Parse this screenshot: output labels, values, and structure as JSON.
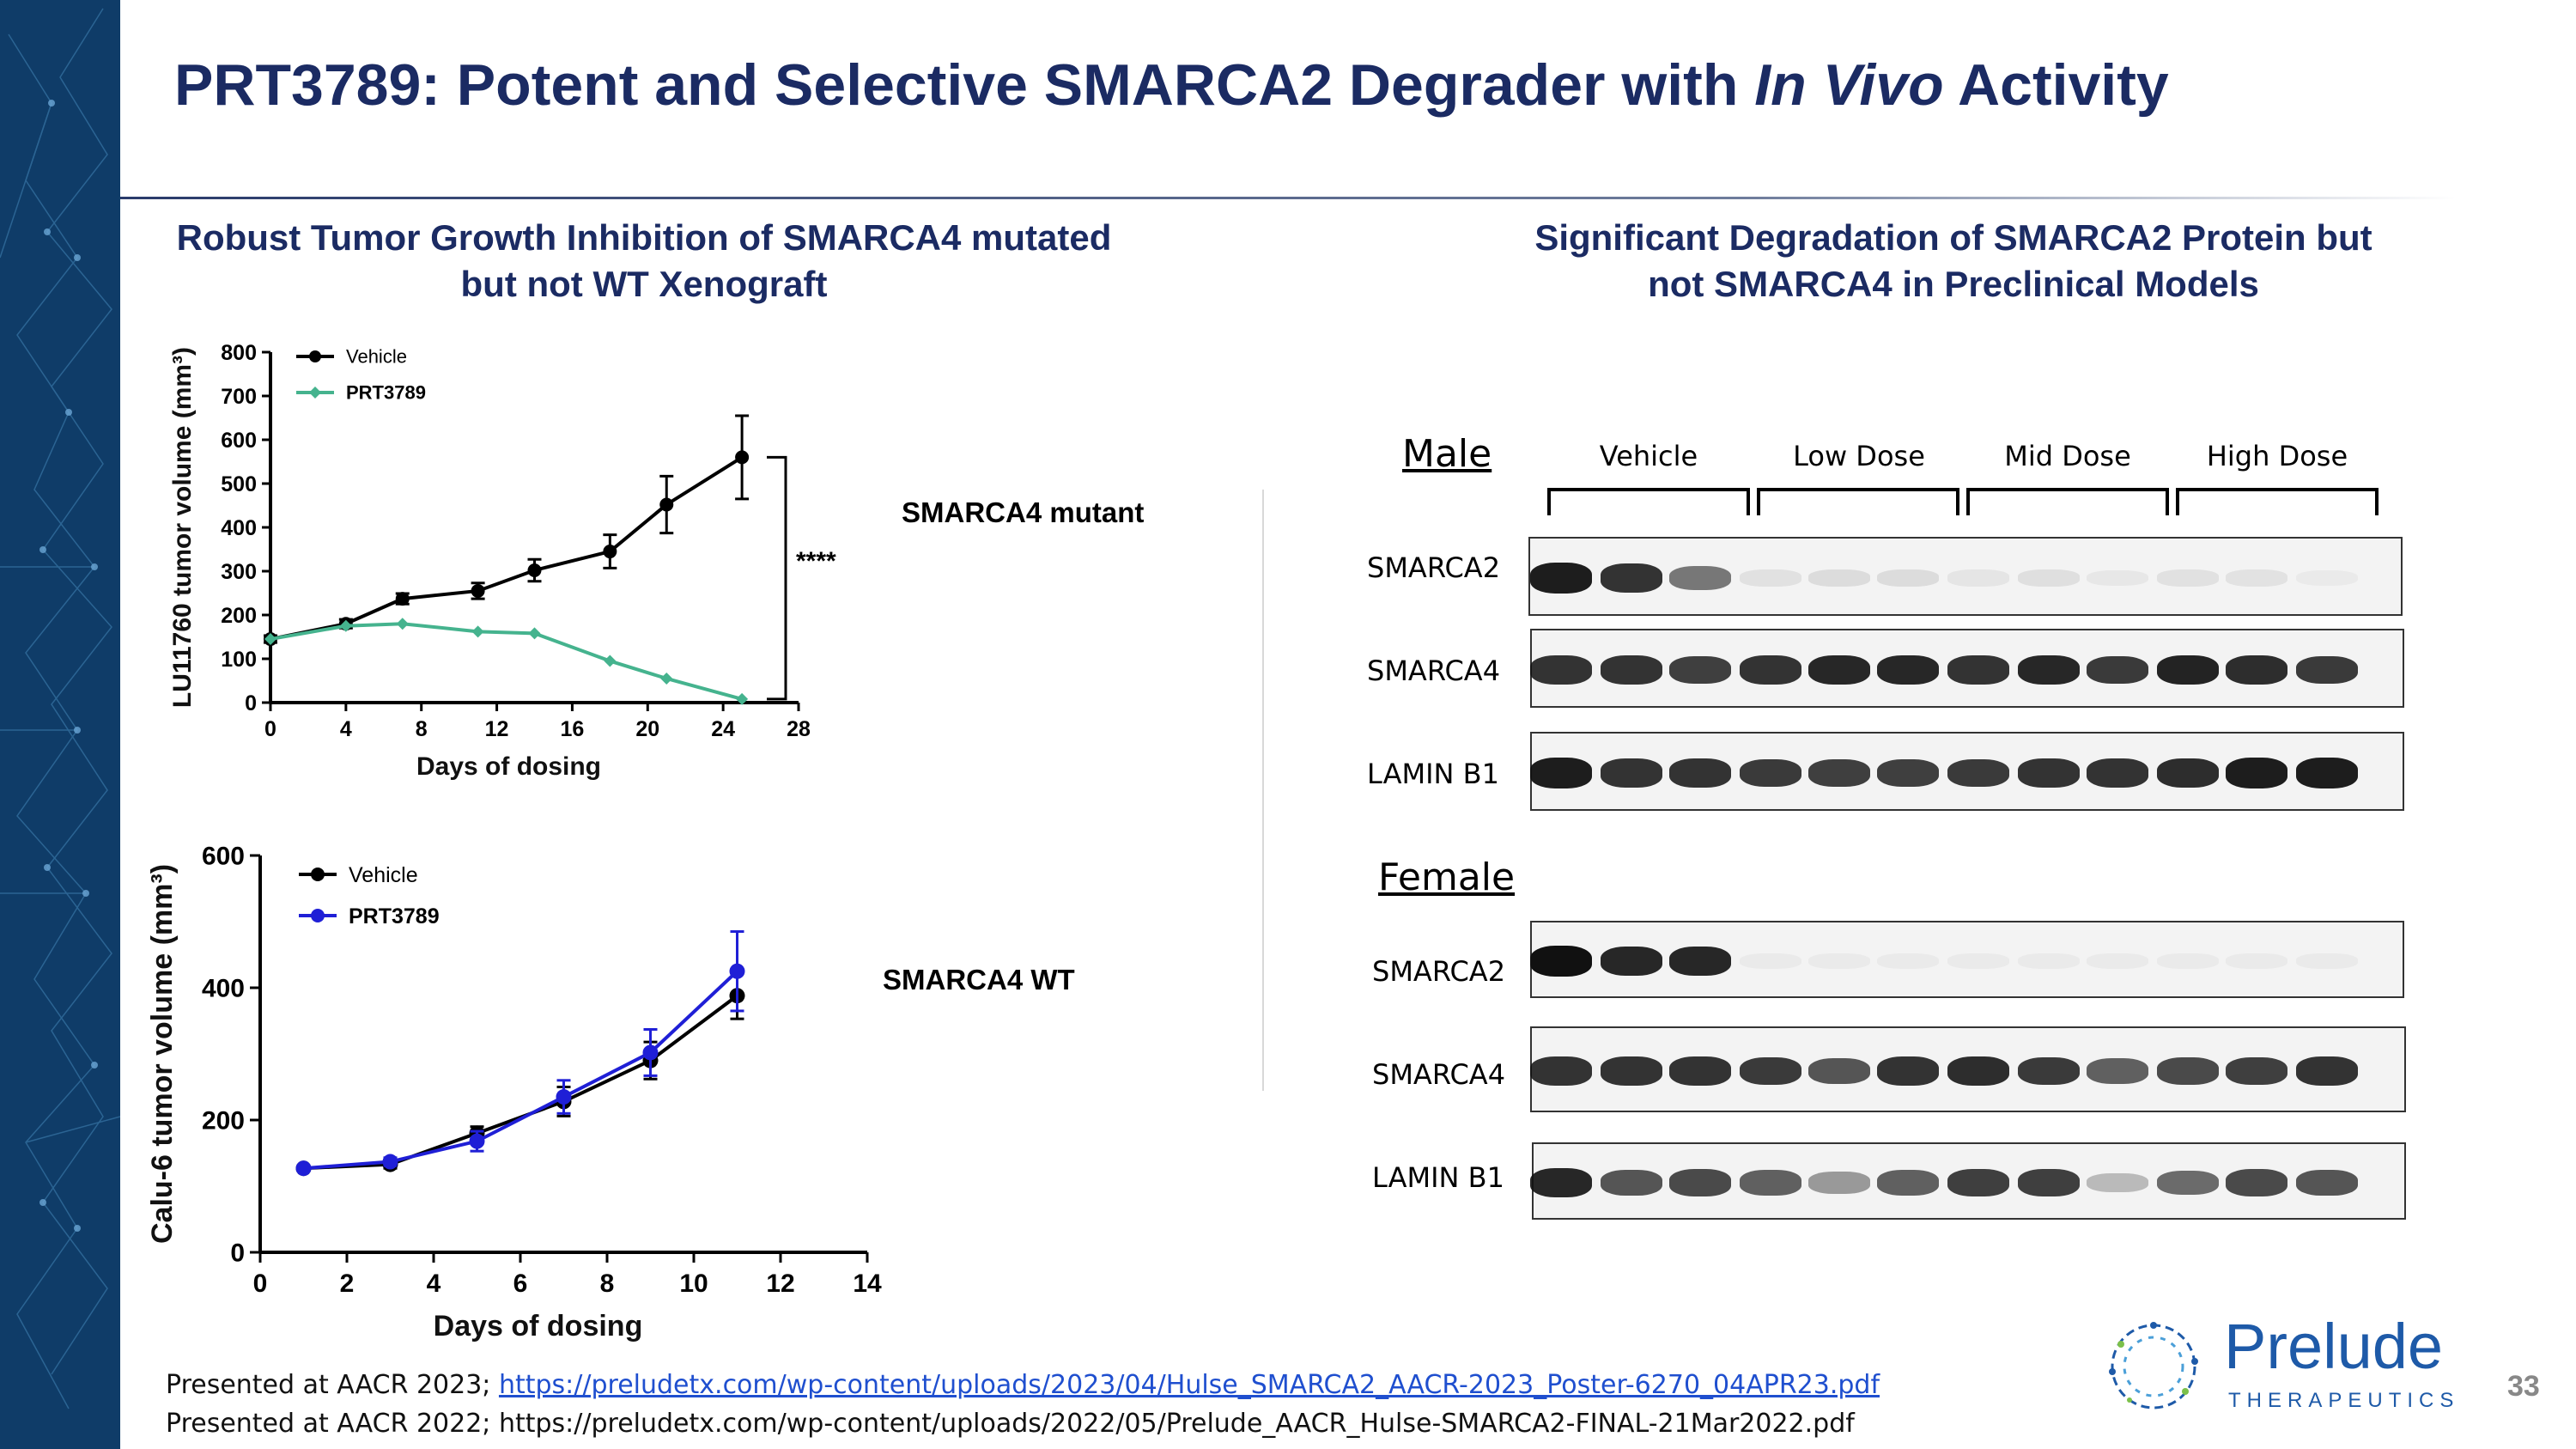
{
  "slide": {
    "title_main": "PRT3789: Potent and Selective SMARCA2 Degrader with ",
    "title_italic": "In Vivo",
    "title_end": " Activity",
    "left_heading_line1": "Robust Tumor Growth Inhibition of SMARCA4 mutated",
    "left_heading_line2": "but not WT Xenograft",
    "right_heading_line1": "Significant Degradation of SMARCA2 Protein but",
    "right_heading_line2": "not SMARCA4 in Preclinical Models",
    "page_number": "33"
  },
  "chart_data": [
    {
      "type": "line",
      "ylabel": "LU11760 tumor volume (mm³)",
      "xlabel": "Days of dosing",
      "group_label": "SMARCA4 mutant",
      "significance": "****",
      "xlim": [
        0,
        28
      ],
      "ylim": [
        0,
        800
      ],
      "xticks": [
        0,
        4,
        8,
        12,
        16,
        20,
        24,
        28
      ],
      "yticks": [
        0,
        100,
        200,
        300,
        400,
        500,
        600,
        700,
        800
      ],
      "legend_position": "top-left",
      "series": [
        {
          "name": "Vehicle",
          "color": "#000000",
          "marker": "circle",
          "x": [
            0,
            4,
            7,
            11,
            14,
            18,
            21,
            25
          ],
          "y": [
            145,
            180,
            237,
            255,
            302,
            345,
            452,
            560
          ],
          "err": [
            8,
            10,
            12,
            18,
            25,
            38,
            65,
            95
          ]
        },
        {
          "name": "PRT3789",
          "color": "#45b38e",
          "marker": "diamond",
          "x": [
            0,
            4,
            7,
            11,
            14,
            18,
            21,
            25
          ],
          "y": [
            145,
            175,
            180,
            162,
            158,
            95,
            55,
            8
          ],
          "err": [
            0,
            0,
            0,
            0,
            0,
            0,
            0,
            0
          ]
        }
      ]
    },
    {
      "type": "line",
      "ylabel": "Calu-6 tumor volume (mm³)",
      "xlabel": "Days of dosing",
      "group_label": "SMARCA4 WT",
      "xlim": [
        0,
        14
      ],
      "ylim": [
        0,
        600
      ],
      "xticks": [
        0,
        2,
        4,
        6,
        8,
        10,
        12,
        14
      ],
      "yticks": [
        0,
        200,
        400,
        600
      ],
      "legend_position": "top-left",
      "series": [
        {
          "name": "Vehicle",
          "color": "#000000",
          "marker": "circle",
          "x": [
            1,
            3,
            5,
            7,
            9,
            11
          ],
          "y": [
            127,
            133,
            180,
            228,
            290,
            388
          ],
          "err": [
            4,
            6,
            10,
            22,
            28,
            35
          ]
        },
        {
          "name": "PRT3789",
          "color": "#1f1fd6",
          "marker": "circle",
          "x": [
            1,
            3,
            5,
            7,
            9,
            11
          ],
          "y": [
            127,
            137,
            168,
            235,
            302,
            425
          ],
          "err": [
            4,
            6,
            15,
            25,
            35,
            60
          ]
        }
      ]
    }
  ],
  "western_blot": {
    "male_label": "Male",
    "female_label": "Female",
    "dose_groups": [
      "Vehicle",
      "Low Dose",
      "Mid Dose",
      "High Dose"
    ],
    "proteins": [
      "SMARCA2",
      "SMARCA4",
      "LAMIN B1"
    ],
    "male_band_intensity": {
      "SMARCA2": [
        0.95,
        0.85,
        0.55,
        0.08,
        0.1,
        0.1,
        0.06,
        0.09,
        0.05,
        0.08,
        0.07,
        0.04
      ],
      "SMARCA4": [
        0.85,
        0.85,
        0.8,
        0.85,
        0.9,
        0.9,
        0.85,
        0.9,
        0.82,
        0.92,
        0.88,
        0.82
      ],
      "LAMIN B1": [
        0.95,
        0.85,
        0.85,
        0.82,
        0.8,
        0.8,
        0.82,
        0.85,
        0.85,
        0.88,
        0.95,
        0.95
      ]
    },
    "female_band_intensity": {
      "SMARCA2": [
        1.0,
        0.9,
        0.9,
        0.03,
        0.02,
        0.03,
        0.02,
        0.02,
        0.02,
        0.02,
        0.02,
        0.02
      ],
      "SMARCA4": [
        0.85,
        0.85,
        0.85,
        0.82,
        0.7,
        0.85,
        0.88,
        0.82,
        0.65,
        0.75,
        0.8,
        0.85
      ],
      "LAMIN B1": [
        0.9,
        0.7,
        0.75,
        0.65,
        0.4,
        0.65,
        0.8,
        0.8,
        0.25,
        0.6,
        0.75,
        0.7
      ]
    }
  },
  "footnotes": {
    "line1_prefix": "Presented at AACR 2023; ",
    "line1_link": "https://preludetx.com/wp-content/uploads/2023/04/Hulse_SMARCA2_AACR-2023_Poster-6270_04APR23.pdf",
    "line2": "Presented at AACR 2022; https://preludetx.com/wp-content/uploads/2022/05/Prelude_AACR_Hulse-SMARCA2-FINAL-21Mar2022.pdf"
  },
  "logo": {
    "name": "Prelude",
    "subtitle": "THERAPEUTICS",
    "icon": "dna-ring-icon"
  },
  "colors": {
    "title": "#1b2b63",
    "sidebar": "#0f3c68",
    "link": "#1f4fcf",
    "logo": "#1e5aa8"
  }
}
